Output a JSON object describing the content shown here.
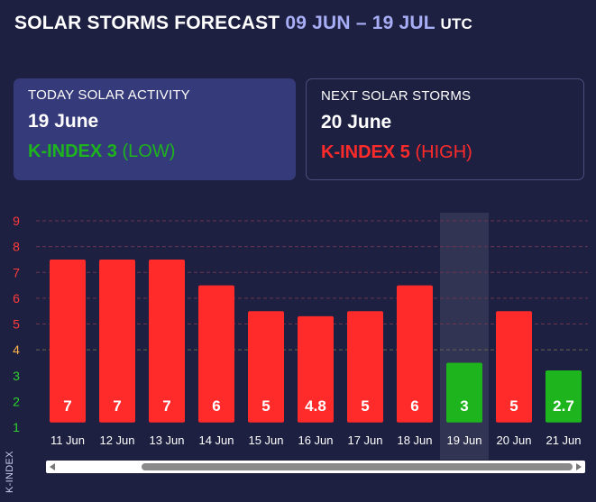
{
  "header": {
    "title_main": "SOLAR STORMS FORECAST",
    "title_range": "09 JUN – 19 JUL",
    "title_tz": "UTC"
  },
  "today_card": {
    "label": "TODAY SOLAR ACTIVITY",
    "date": "19 June",
    "kindex_label": "K-INDEX",
    "kindex_value": "3",
    "level": "(LOW)"
  },
  "next_card": {
    "label": "NEXT SOLAR STORMS",
    "date": "20 June",
    "kindex_label": "K-INDEX",
    "kindex_value": "5",
    "level": "(HIGH)"
  },
  "colors": {
    "background": "#1e2042",
    "high": "#ff2b2b",
    "low": "#1db41d",
    "accent": "#a8aef5",
    "today_card": "#353a7a",
    "tick_red": "#ff3b3b",
    "tick_orange": "#ffb347",
    "tick_green": "#2fd12f"
  },
  "chart_data": {
    "type": "bar",
    "ylabel": "K-INDEX",
    "ylim": [
      1,
      9
    ],
    "yticks": [
      1,
      2,
      3,
      4,
      5,
      6,
      7,
      8,
      9
    ],
    "categories": [
      "11 Jun",
      "12 Jun",
      "13 Jun",
      "14 Jun",
      "15 Jun",
      "16 Jun",
      "17 Jun",
      "18 Jun",
      "19 Jun",
      "20 Jun",
      "21 Jun"
    ],
    "values": [
      7,
      7,
      7,
      6,
      5,
      4.8,
      5,
      6,
      3,
      5,
      2.7
    ],
    "labels": [
      "7",
      "7",
      "7",
      "6",
      "5",
      "4.8",
      "5",
      "6",
      "3",
      "5",
      "2.7"
    ],
    "highlighted_category": "19 Jun",
    "grid": true
  }
}
